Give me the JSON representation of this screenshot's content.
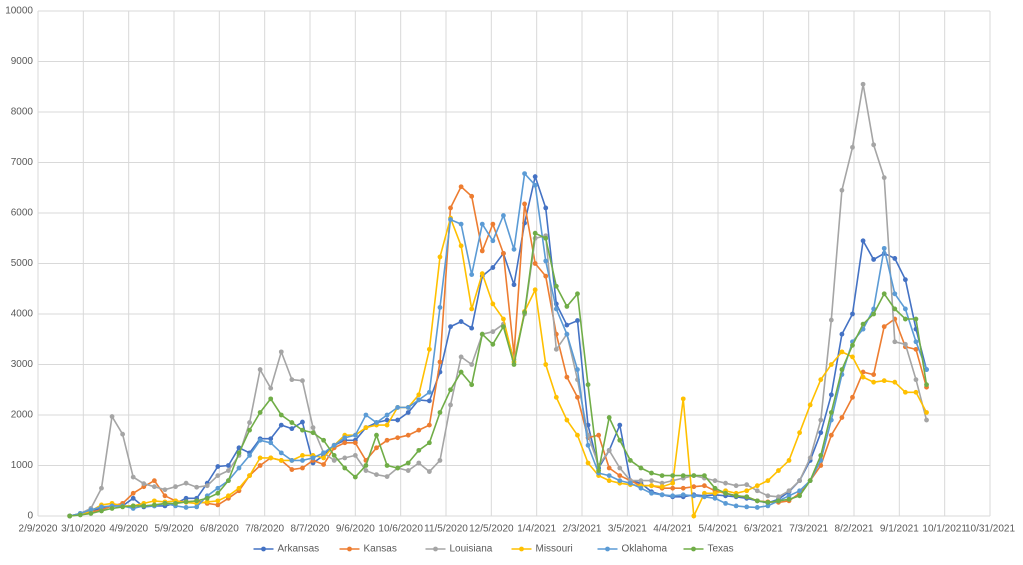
{
  "chart_data": {
    "type": "line",
    "x": [
      "3/1/2020",
      "3/8/2020",
      "3/15/2020",
      "3/22/2020",
      "3/29/2020",
      "4/5/2020",
      "4/12/2020",
      "4/19/2020",
      "4/26/2020",
      "5/3/2020",
      "5/10/2020",
      "5/17/2020",
      "5/24/2020",
      "5/31/2020",
      "6/7/2020",
      "6/14/2020",
      "6/21/2020",
      "6/28/2020",
      "7/5/2020",
      "7/12/2020",
      "7/19/2020",
      "7/26/2020",
      "8/2/2020",
      "8/9/2020",
      "8/16/2020",
      "8/23/2020",
      "8/30/2020",
      "9/6/2020",
      "9/13/2020",
      "9/20/2020",
      "9/27/2020",
      "10/4/2020",
      "10/11/2020",
      "10/18/2020",
      "10/25/2020",
      "11/1/2020",
      "11/8/2020",
      "11/15/2020",
      "11/22/2020",
      "11/29/2020",
      "12/6/2020",
      "12/13/2020",
      "12/20/2020",
      "12/27/2020",
      "1/3/2021",
      "1/10/2021",
      "1/17/2021",
      "1/24/2021",
      "1/31/2021",
      "2/7/2021",
      "2/14/2021",
      "2/21/2021",
      "2/28/2021",
      "3/7/2021",
      "3/14/2021",
      "3/21/2021",
      "3/28/2021",
      "4/4/2021",
      "4/11/2021",
      "4/18/2021",
      "4/25/2021",
      "5/2/2021",
      "5/9/2021",
      "5/16/2021",
      "5/23/2021",
      "5/30/2021",
      "6/6/2021",
      "6/13/2021",
      "6/20/2021",
      "6/27/2021",
      "7/4/2021",
      "7/11/2021",
      "7/18/2021",
      "7/25/2021",
      "8/1/2021",
      "8/8/2021",
      "8/15/2021",
      "8/22/2021",
      "8/29/2021",
      "9/5/2021",
      "9/12/2021",
      "9/19/2021"
    ],
    "series": [
      {
        "name": "Arkansas",
        "color": "#4472c4",
        "values": [
          0,
          50,
          100,
          150,
          200,
          200,
          350,
          180,
          200,
          200,
          250,
          350,
          350,
          650,
          980,
          1000,
          1350,
          1250,
          1530,
          1530,
          1800,
          1730,
          1860,
          1050,
          1200,
          1400,
          1500,
          1500,
          1750,
          1850,
          1900,
          1900,
          2050,
          2300,
          2280,
          2850,
          3750,
          3850,
          3720,
          4750,
          4920,
          5200,
          4580,
          5800,
          6720,
          6100,
          4200,
          3780,
          3870,
          1800,
          950,
          1300,
          1800,
          700,
          650,
          480,
          420,
          380,
          380,
          420,
          400,
          420,
          400,
          380,
          350,
          300,
          260,
          330,
          480,
          700,
          1100,
          1650,
          2400,
          3600,
          4000,
          5450,
          5080,
          5200,
          5100,
          4680,
          3700,
          2900
        ]
      },
      {
        "name": "Kansas",
        "color": "#ed7d31",
        "values": [
          0,
          30,
          80,
          120,
          200,
          250,
          450,
          580,
          700,
          400,
          300,
          280,
          300,
          250,
          220,
          350,
          500,
          800,
          1000,
          1150,
          1100,
          920,
          950,
          1100,
          1020,
          1350,
          1450,
          1450,
          1100,
          1350,
          1500,
          1550,
          1600,
          1700,
          1800,
          3050,
          6100,
          6520,
          6330,
          5250,
          5780,
          5200,
          3200,
          6180,
          5000,
          4750,
          3600,
          2750,
          2350,
          1550,
          1600,
          950,
          800,
          700,
          600,
          600,
          550,
          550,
          550,
          580,
          600,
          500,
          450,
          400,
          380,
          300,
          280,
          270,
          300,
          450,
          700,
          1000,
          1600,
          1950,
          2350,
          2850,
          2800,
          3750,
          3900,
          3350,
          3300,
          2550
        ]
      },
      {
        "name": "Louisiana",
        "color": "#a5a5a5",
        "values": [
          0,
          50,
          150,
          550,
          1970,
          1620,
          770,
          640,
          580,
          520,
          580,
          650,
          570,
          600,
          800,
          900,
          1200,
          1850,
          2900,
          2530,
          3250,
          2700,
          2680,
          1750,
          1250,
          1100,
          1150,
          1200,
          900,
          820,
          780,
          950,
          900,
          1050,
          880,
          1100,
          2200,
          3150,
          3000,
          3600,
          3650,
          3800,
          3100,
          4000,
          5500,
          5550,
          3300,
          3600,
          2700,
          1600,
          1000,
          1300,
          950,
          700,
          700,
          700,
          650,
          700,
          750,
          800,
          750,
          700,
          650,
          600,
          620,
          500,
          400,
          380,
          500,
          700,
          1150,
          1900,
          3880,
          6450,
          7300,
          8550,
          7350,
          6700,
          3450,
          3400,
          2700,
          1900
        ]
      },
      {
        "name": "Missouri",
        "color": "#ffc000",
        "values": [
          0,
          30,
          100,
          220,
          250,
          200,
          200,
          250,
          300,
          280,
          300,
          270,
          250,
          280,
          300,
          400,
          550,
          800,
          1150,
          1150,
          1100,
          1100,
          1200,
          1200,
          1150,
          1400,
          1600,
          1600,
          1750,
          1800,
          1800,
          2150,
          2150,
          2400,
          3300,
          5130,
          5900,
          5350,
          4100,
          4800,
          4200,
          3900,
          3050,
          4050,
          4480,
          3000,
          2350,
          1900,
          1600,
          1050,
          800,
          700,
          650,
          620,
          600,
          600,
          580,
          650,
          2320,
          0,
          450,
          450,
          500,
          450,
          500,
          600,
          700,
          900,
          1100,
          1650,
          2200,
          2700,
          3000,
          3250,
          3150,
          2750,
          2650,
          2680,
          2650,
          2450,
          2450,
          2050
        ]
      },
      {
        "name": "Oklahoma",
        "color": "#5b9bd5",
        "values": [
          0,
          50,
          120,
          180,
          200,
          200,
          150,
          200,
          200,
          250,
          200,
          170,
          180,
          400,
          550,
          700,
          950,
          1200,
          1500,
          1450,
          1250,
          1100,
          1100,
          1150,
          1250,
          1400,
          1550,
          1600,
          2000,
          1850,
          2000,
          2150,
          2150,
          2300,
          2450,
          4130,
          5870,
          5780,
          4780,
          5780,
          5450,
          5950,
          5280,
          6780,
          6550,
          5050,
          4100,
          3600,
          2900,
          1400,
          850,
          800,
          700,
          650,
          550,
          450,
          420,
          400,
          420,
          400,
          380,
          350,
          250,
          200,
          180,
          170,
          200,
          300,
          400,
          500,
          700,
          1100,
          1900,
          2800,
          3450,
          3700,
          4100,
          5300,
          4400,
          4100,
          3450,
          2900
        ]
      },
      {
        "name": "Texas",
        "color": "#70ad47",
        "values": [
          0,
          20,
          50,
          100,
          150,
          180,
          200,
          200,
          220,
          250,
          250,
          280,
          300,
          350,
          450,
          700,
          1250,
          1700,
          2050,
          2320,
          2000,
          1850,
          1700,
          1650,
          1500,
          1200,
          950,
          770,
          1000,
          1600,
          1000,
          950,
          1050,
          1300,
          1450,
          2050,
          2500,
          2850,
          2600,
          3600,
          3400,
          3750,
          3000,
          4030,
          5600,
          5500,
          4550,
          4150,
          4400,
          2600,
          900,
          1950,
          1500,
          1100,
          950,
          850,
          800,
          800,
          800,
          800,
          800,
          550,
          450,
          400,
          380,
          300,
          270,
          300,
          330,
          400,
          700,
          1200,
          2050,
          2900,
          3380,
          3800,
          4000,
          4400,
          4100,
          3900,
          3900,
          2600
        ]
      }
    ],
    "xlim": [
      "2/9/2020",
      "10/31/2021"
    ],
    "xticks": [
      "2/9/2020",
      "3/10/2020",
      "4/9/2020",
      "5/9/2020",
      "6/8/2020",
      "7/8/2020",
      "8/7/2020",
      "9/6/2020",
      "10/6/2020",
      "11/5/2020",
      "12/5/2020",
      "1/4/2021",
      "2/3/2021",
      "3/5/2021",
      "4/4/2021",
      "5/4/2021",
      "6/3/2021",
      "7/3/2021",
      "8/2/2021",
      "9/1/2021",
      "10/1/2021",
      "10/31/2021"
    ],
    "ylim": [
      0,
      10000
    ],
    "yticks": [
      0,
      1000,
      2000,
      3000,
      4000,
      5000,
      6000,
      7000,
      8000,
      9000,
      10000
    ],
    "grid": true,
    "legend": "bottom"
  }
}
